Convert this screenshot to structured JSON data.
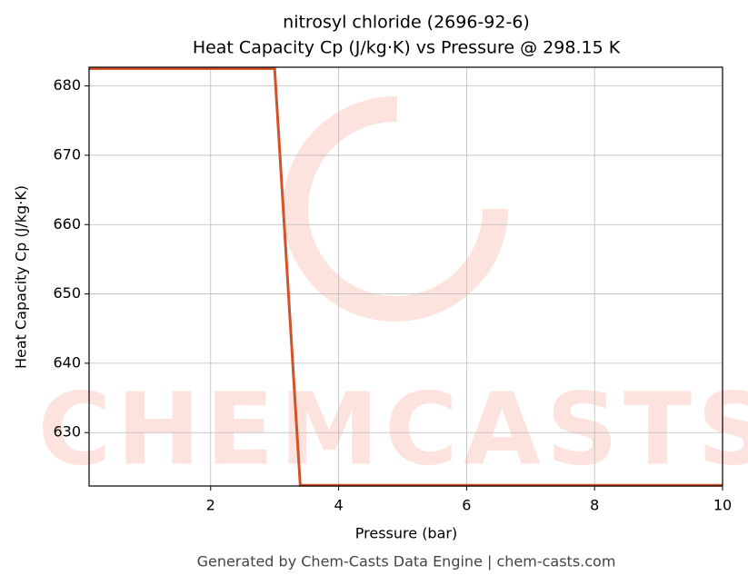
{
  "chart_data": {
    "type": "line",
    "title": "nitrosyl chloride (2696-92-6)",
    "subtitle": "Heat Capacity Cp (J/kg·K) vs Pressure @ 298.15 K",
    "x_label": "Pressure (bar)",
    "y_label": "Heat Capacity Cp (J/kg·K)",
    "x": [
      0.1,
      3.0,
      3.4,
      10
    ],
    "values": [
      682.5,
      682.5,
      622.4,
      622.4
    ],
    "color": "#d4522a",
    "xlim": [
      0.1,
      10
    ],
    "xticks": [
      2,
      4,
      6,
      8,
      10
    ],
    "ylim": [
      622.3,
      682.7
    ],
    "yticks": [
      630,
      640,
      650,
      660,
      670,
      680
    ],
    "grid": true,
    "watermark": "CHEMCASTS",
    "footer": "Generated by Chem-Casts Data Engine | chem-casts.com"
  }
}
